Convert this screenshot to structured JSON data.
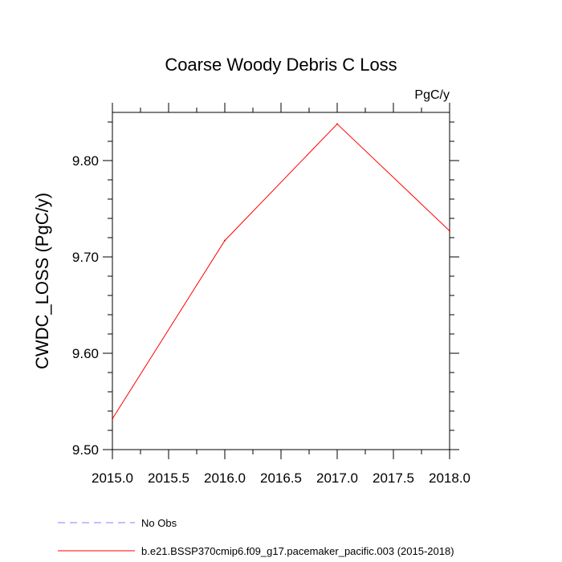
{
  "chart_data": {
    "type": "line",
    "title": "Coarse Woody Debris C Loss",
    "units": "PgC/y",
    "xlabel": "",
    "ylabel": "CWDC_LOSS  (PgC/y)",
    "xlim": [
      2015.0,
      2018.0
    ],
    "ylim": [
      9.5,
      9.85
    ],
    "x_ticks": [
      2015.0,
      2015.5,
      2016.0,
      2016.5,
      2017.0,
      2017.5,
      2018.0
    ],
    "x_tick_labels": [
      "2015.0",
      "2015.5",
      "2016.0",
      "2016.5",
      "2017.0",
      "2017.5",
      "2018.0"
    ],
    "y_ticks": [
      9.5,
      9.6,
      9.7,
      9.8
    ],
    "y_tick_labels": [
      "9.50",
      "9.60",
      "9.70",
      "9.80"
    ],
    "grid": false,
    "legend_position": "bottom-left",
    "series": [
      {
        "name": "No Obs",
        "color": "#8080ff",
        "dash": "dashed",
        "x": [],
        "y": []
      },
      {
        "name": "b.e21.BSSP370cmip6.f09_g17.pacemaker_pacific.003 (2015-2018)",
        "color": "#ff0000",
        "dash": "solid",
        "x": [
          2015,
          2016,
          2017,
          2018
        ],
        "y": [
          9.532,
          9.717,
          9.838,
          9.727
        ]
      }
    ]
  }
}
